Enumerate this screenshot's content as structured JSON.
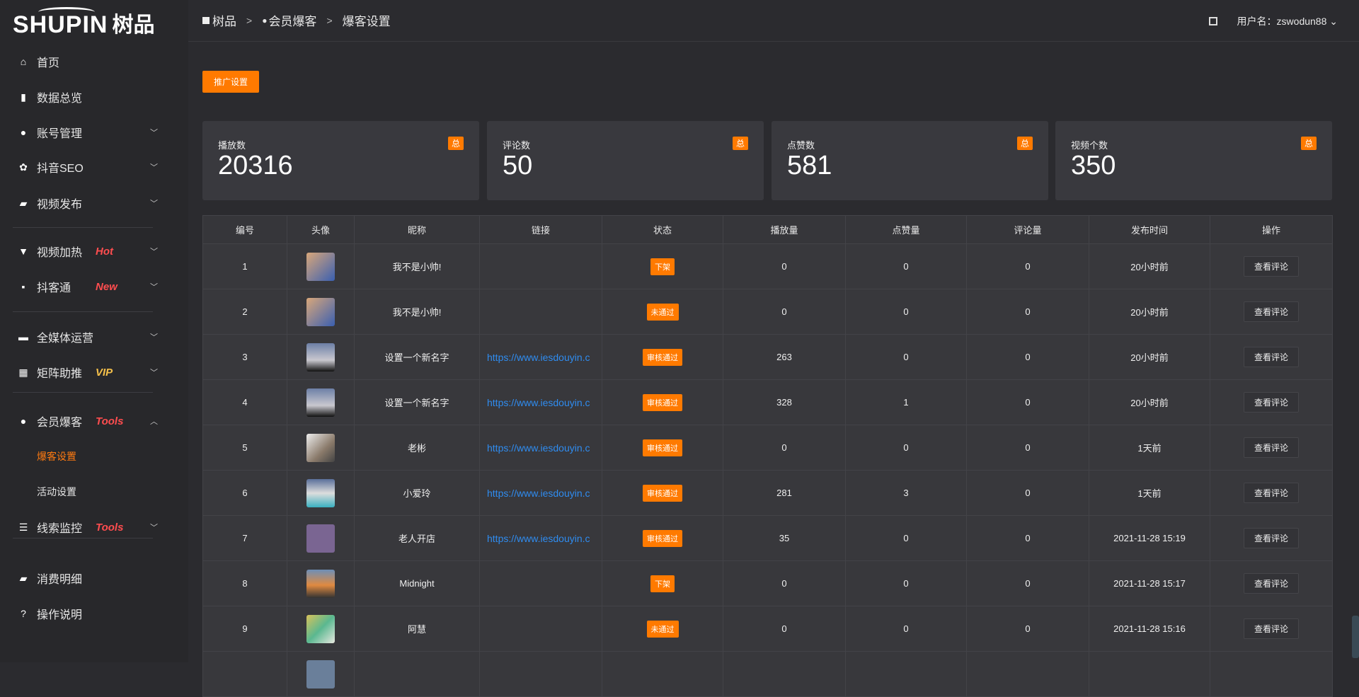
{
  "logo": {
    "en": "SHUPIN",
    "cn": "树品"
  },
  "sidebar": {
    "items": [
      {
        "label": "首页",
        "icon": "home-icon",
        "glyph": "⌂"
      },
      {
        "label": "数据总览",
        "icon": "bar-chart-icon",
        "glyph": "▮"
      },
      {
        "label": "账号管理",
        "icon": "user-icon",
        "glyph": "●",
        "chevron": "down"
      },
      {
        "label": "抖音SEO",
        "icon": "gear-icon",
        "glyph": "✿",
        "chevron": "down"
      },
      {
        "label": "视频发布",
        "icon": "camera-icon",
        "glyph": "▰",
        "chevron": "down"
      },
      {
        "label": "视频加热",
        "icon": "signboard-icon",
        "glyph": "▼",
        "badge": "Hot",
        "badge_color": "#ff4d4f",
        "chevron": "down"
      },
      {
        "label": "抖客通",
        "icon": "chat-icon",
        "glyph": "▪",
        "badge": "New",
        "badge_color": "#ff4d4f",
        "chevron": "down"
      },
      {
        "label": "全媒体运营",
        "icon": "monitor-icon",
        "glyph": "▬",
        "chevron": "down"
      },
      {
        "label": "矩阵助推",
        "icon": "grid-icon",
        "glyph": "▦",
        "badge": "VIP",
        "badge_color": "#f5c04a",
        "chevron": "down"
      },
      {
        "label": "会员爆客",
        "icon": "user-icon",
        "glyph": "●",
        "badge": "Tools",
        "badge_color": "#ff4d4f",
        "chevron": "up"
      },
      {
        "label": "爆客设置",
        "sub": true,
        "active": true
      },
      {
        "label": "活动设置",
        "sub": true
      },
      {
        "label": "线索监控",
        "icon": "sliders-icon",
        "glyph": "☰",
        "badge": "Tools",
        "badge_color": "#ff4d4f",
        "chevron": "down"
      },
      {
        "label": "消费明细",
        "icon": "wallet-icon",
        "glyph": "▰"
      },
      {
        "label": "操作说明",
        "icon": "help-icon",
        "glyph": "?"
      }
    ]
  },
  "header": {
    "breadcrumb": [
      "树品",
      "会员爆客",
      "爆客设置"
    ],
    "user_label": "用户名：zswodun88"
  },
  "toolbar": {
    "promo_label": "推广设置"
  },
  "stats": [
    {
      "title": "播放数",
      "value": "20316",
      "badge": "总"
    },
    {
      "title": "评论数",
      "value": "50",
      "badge": "总"
    },
    {
      "title": "点赞数",
      "value": "581",
      "badge": "总"
    },
    {
      "title": "视频个数",
      "value": "350",
      "badge": "总"
    }
  ],
  "accent": "#ff7a00",
  "table": {
    "columns": [
      "编号",
      "头像",
      "昵称",
      "链接",
      "状态",
      "播放量",
      "点赞量",
      "评论量",
      "发布时间",
      "操作"
    ],
    "rows": [
      {
        "id": "1",
        "avatar": "linear-gradient(135deg,#d9a77a,#3a5fb0)",
        "nickname": "我不是小帅!",
        "link": "",
        "status": "下架",
        "plays": "0",
        "likes": "0",
        "comments": "0",
        "time": "20小时前",
        "action": "查看评论"
      },
      {
        "id": "2",
        "avatar": "linear-gradient(135deg,#d9a77a,#3a5fb0)",
        "nickname": "我不是小帅!",
        "link": "",
        "status": "未通过",
        "plays": "0",
        "likes": "0",
        "comments": "0",
        "time": "20小时前",
        "action": "查看评论"
      },
      {
        "id": "3",
        "avatar": "linear-gradient(180deg,#6c7fa6,#c9c8cf 60%,#111)",
        "nickname": "设置一个新名字",
        "link": "https://www.iesdouyin.c",
        "status": "审核通过",
        "plays": "263",
        "likes": "0",
        "comments": "0",
        "time": "20小时前",
        "action": "查看评论"
      },
      {
        "id": "4",
        "avatar": "linear-gradient(180deg,#6c7fa6,#c9c8cf 60%,#111)",
        "nickname": "设置一个新名字",
        "link": "https://www.iesdouyin.c",
        "status": "审核通过",
        "plays": "328",
        "likes": "1",
        "comments": "0",
        "time": "20小时前",
        "action": "查看评论"
      },
      {
        "id": "5",
        "avatar": "linear-gradient(135deg,#eee,#8a7a6a 60%,#444)",
        "nickname": "老彬",
        "link": "https://www.iesdouyin.c",
        "status": "审核通过",
        "plays": "0",
        "likes": "0",
        "comments": "0",
        "time": "1天前",
        "action": "查看评论"
      },
      {
        "id": "6",
        "avatar": "linear-gradient(180deg,#5a6f9a,#ddd 50%,#3ab0c0)",
        "nickname": "小爱玲",
        "link": "https://www.iesdouyin.c",
        "status": "审核通过",
        "plays": "281",
        "likes": "3",
        "comments": "0",
        "time": "1天前",
        "action": "查看评论"
      },
      {
        "id": "7",
        "avatar": "linear-gradient(180deg,#7a6592,#7a6592)",
        "nickname": "老人开店",
        "link": "https://www.iesdouyin.c",
        "status": "审核通过",
        "plays": "35",
        "likes": "0",
        "comments": "0",
        "time": "2021-11-28 15:19",
        "action": "查看评论"
      },
      {
        "id": "8",
        "avatar": "linear-gradient(180deg,#6d8fb8,#e08a40 55%,#333)",
        "nickname": "Midnight",
        "link": "",
        "status": "下架",
        "plays": "0",
        "likes": "0",
        "comments": "0",
        "time": "2021-11-28 15:17",
        "action": "查看评论"
      },
      {
        "id": "9",
        "avatar": "linear-gradient(135deg,#d8c25a,#5ab890 50%,#e8e8e0)",
        "nickname": "阿慧",
        "link": "",
        "status": "未通过",
        "plays": "0",
        "likes": "0",
        "comments": "0",
        "time": "2021-11-28 15:16",
        "action": "查看评论"
      }
    ]
  }
}
